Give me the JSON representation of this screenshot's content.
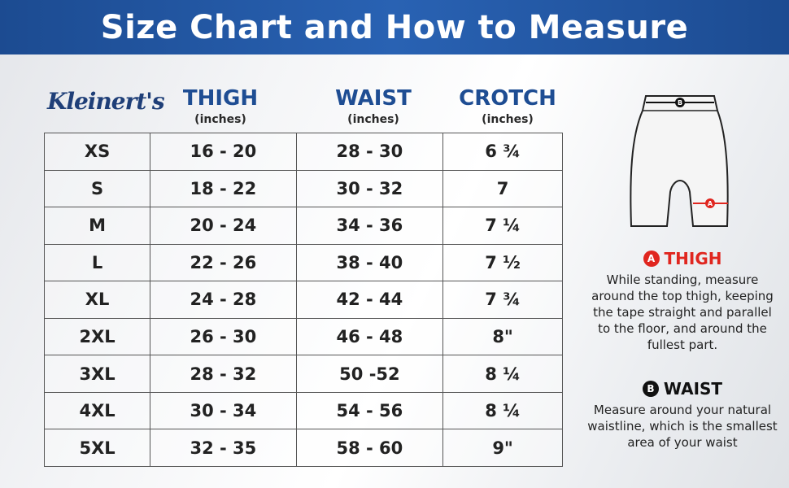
{
  "header": {
    "title": "Size Chart and How to Measure"
  },
  "brand": {
    "logo_text": "Kleinert's"
  },
  "columns": [
    {
      "title": "THIGH",
      "unit": "(inches)"
    },
    {
      "title": "WAIST",
      "unit": "(inches)"
    },
    {
      "title": "CROTCH",
      "unit": "(inches)"
    }
  ],
  "rows": [
    {
      "size": "XS",
      "thigh": "16 - 20",
      "waist": "28 - 30",
      "crotch": "6 ¾"
    },
    {
      "size": "S",
      "thigh": "18 - 22",
      "waist": "30 - 32",
      "crotch": "7"
    },
    {
      "size": "M",
      "thigh": "20 - 24",
      "waist": "34 - 36",
      "crotch": "7 ¼"
    },
    {
      "size": "L",
      "thigh": "22 - 26",
      "waist": "38 - 40",
      "crotch": "7 ½"
    },
    {
      "size": "XL",
      "thigh": "24 - 28",
      "waist": "42 - 44",
      "crotch": "7 ¾"
    },
    {
      "size": "2XL",
      "thigh": "26 - 30",
      "waist": "46 - 48",
      "crotch": "8\""
    },
    {
      "size": "3XL",
      "thigh": "28 - 32",
      "waist": "50 -52",
      "crotch": "8 ¼"
    },
    {
      "size": "4XL",
      "thigh": "30 - 34",
      "waist": "54 - 56",
      "crotch": "8 ¼"
    },
    {
      "size": "5XL",
      "thigh": "32 - 35",
      "waist": "58 - 60",
      "crotch": "9\""
    }
  ],
  "diagram": {
    "marker_a": "A",
    "marker_b": "B"
  },
  "guide": {
    "thigh": {
      "badge": "A",
      "title": "THIGH",
      "text": "While standing, measure around the top thigh, keeping the tape straight and parallel to the floor, and around the fullest part."
    },
    "waist": {
      "badge": "B",
      "title": "WAIST",
      "text": "Measure around your natural waistline, which is the smallest area of your waist"
    }
  },
  "colors": {
    "banner": "#2962b3",
    "heading_blue": "#1e4d93",
    "thigh_red": "#e0261f",
    "waist_black": "#111111"
  }
}
